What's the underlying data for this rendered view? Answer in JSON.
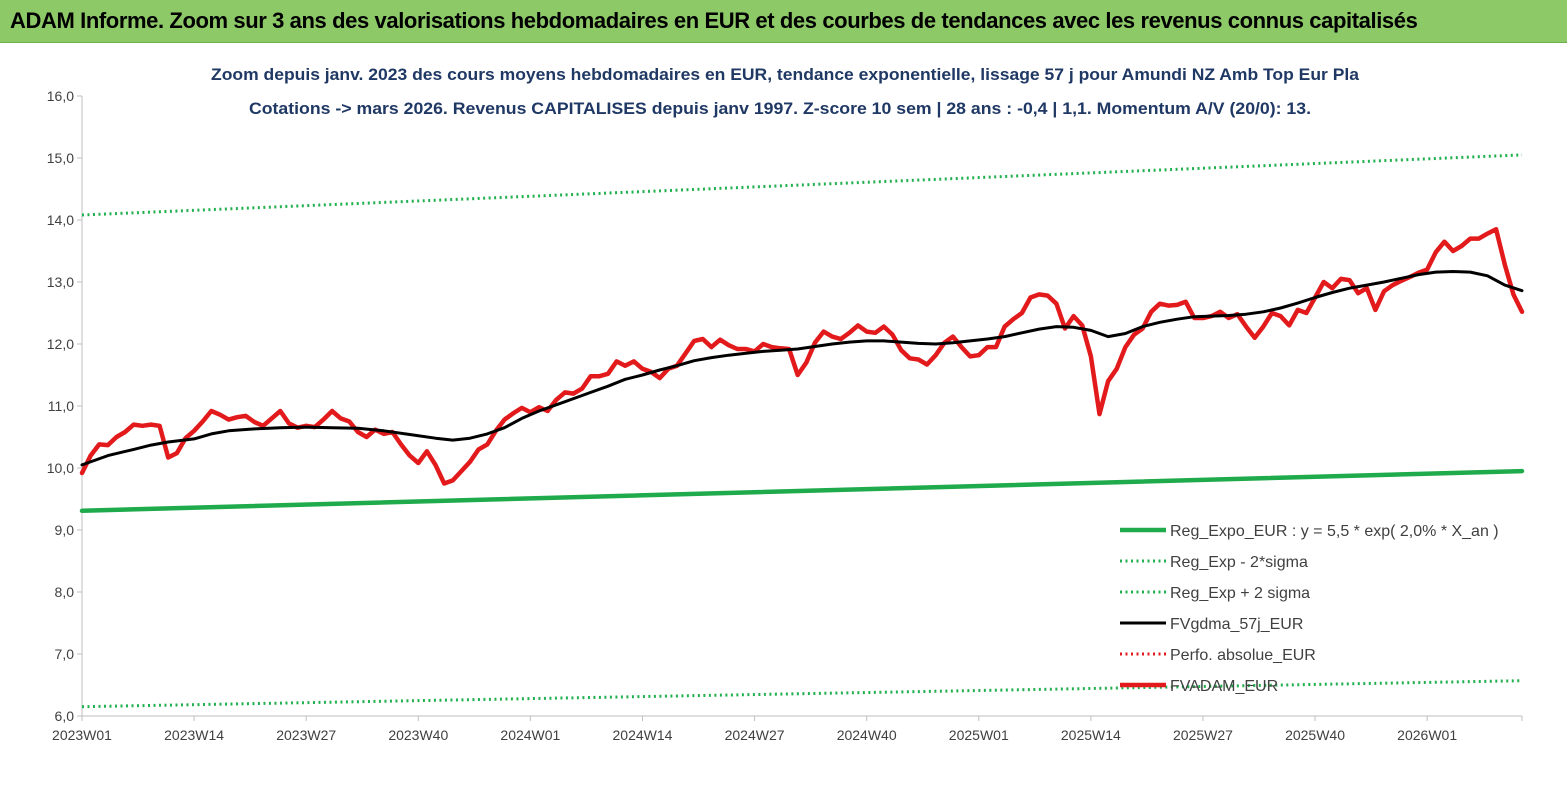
{
  "banner": {
    "title": "ADAM Informe. Zoom sur 3 ans des valorisations hebdomadaires en EUR et des courbes de tendances avec les revenus connus capitalisés"
  },
  "colors": {
    "banner_bg": "#8dc967",
    "reg_expo": "#1faa4b",
    "sigma_bands": "#22b04e",
    "fvgdma": "#000000",
    "perfo": "#e31a1c",
    "fvadam": "#e31a1c"
  },
  "chart_data": {
    "type": "line",
    "title": "Zoom depuis janv. 2023 des cours moyens hebdomadaires en EUR, tendance exponentielle, lissage 57 j pour Amundi NZ Amb Top Eur Pla",
    "subtitle": "Cotations -> mars 2026. Revenus CAPITALISES depuis janv 1997. Z-score 10 sem | 28 ans : -0,4 | 1,1. Momentum A/V (20/0): 13.",
    "ylim": [
      6.0,
      16.0
    ],
    "y_ticks": [
      "6,0",
      "7,0",
      "8,0",
      "9,0",
      "10,0",
      "11,0",
      "12,0",
      "13,0",
      "14,0",
      "15,0",
      "16,0"
    ],
    "x_ticks": [
      "2023W01",
      "2023W14",
      "2023W27",
      "2023W40",
      "2024W01",
      "2024W14",
      "2024W27",
      "2024W40",
      "2025W01",
      "2025W14",
      "2025W27",
      "2025W40",
      "2026W01"
    ],
    "x_tick_weeks": [
      0,
      13,
      26,
      39,
      52,
      65,
      78,
      91,
      104,
      117,
      130,
      143,
      156
    ],
    "x_range_weeks": [
      0,
      167
    ],
    "legend_position": "bottom-right",
    "grid": false,
    "series": [
      {
        "name": "Reg_Expo_EUR : y = 5,5 * exp( 2,0% * X_an )",
        "style": "solid-thick",
        "color": "#1faa4b",
        "points": [
          [
            0,
            9.31
          ],
          [
            167,
            9.95
          ]
        ]
      },
      {
        "name": "Reg_Exp - 2*sigma",
        "style": "dotted",
        "color": "#22b04e",
        "points": [
          [
            0,
            6.15
          ],
          [
            167,
            6.57
          ]
        ]
      },
      {
        "name": "Reg_Exp + 2 sigma",
        "style": "dotted",
        "color": "#22b04e",
        "points": [
          [
            0,
            14.08
          ],
          [
            167,
            15.05
          ]
        ]
      },
      {
        "name": "FVgdma_57j_EUR",
        "style": "solid",
        "color": "#000000",
        "points": [
          [
            0,
            10.05
          ],
          [
            3,
            10.2
          ],
          [
            6,
            10.3
          ],
          [
            8,
            10.37
          ],
          [
            10,
            10.42
          ],
          [
            13,
            10.47
          ],
          [
            15,
            10.55
          ],
          [
            17,
            10.6
          ],
          [
            20,
            10.63
          ],
          [
            23,
            10.65
          ],
          [
            26,
            10.66
          ],
          [
            29,
            10.65
          ],
          [
            32,
            10.64
          ],
          [
            35,
            10.6
          ],
          [
            38,
            10.54
          ],
          [
            41,
            10.48
          ],
          [
            43,
            10.45
          ],
          [
            45,
            10.48
          ],
          [
            47,
            10.55
          ],
          [
            49,
            10.65
          ],
          [
            51,
            10.8
          ],
          [
            53,
            10.92
          ],
          [
            55,
            11.02
          ],
          [
            57,
            11.12
          ],
          [
            59,
            11.22
          ],
          [
            61,
            11.32
          ],
          [
            63,
            11.43
          ],
          [
            65,
            11.5
          ],
          [
            67,
            11.58
          ],
          [
            69,
            11.65
          ],
          [
            71,
            11.73
          ],
          [
            73,
            11.78
          ],
          [
            75,
            11.82
          ],
          [
            77,
            11.85
          ],
          [
            79,
            11.88
          ],
          [
            81,
            11.9
          ],
          [
            83,
            11.92
          ],
          [
            85,
            11.96
          ],
          [
            87,
            12.0
          ],
          [
            89,
            12.03
          ],
          [
            91,
            12.05
          ],
          [
            93,
            12.05
          ],
          [
            95,
            12.03
          ],
          [
            97,
            12.01
          ],
          [
            99,
            12.0
          ],
          [
            101,
            12.02
          ],
          [
            103,
            12.05
          ],
          [
            105,
            12.08
          ],
          [
            107,
            12.12
          ],
          [
            109,
            12.18
          ],
          [
            111,
            12.24
          ],
          [
            113,
            12.28
          ],
          [
            115,
            12.27
          ],
          [
            117,
            12.22
          ],
          [
            119,
            12.12
          ],
          [
            121,
            12.17
          ],
          [
            123,
            12.28
          ],
          [
            125,
            12.35
          ],
          [
            127,
            12.4
          ],
          [
            129,
            12.44
          ],
          [
            131,
            12.45
          ],
          [
            133,
            12.46
          ],
          [
            135,
            12.48
          ],
          [
            137,
            12.52
          ],
          [
            139,
            12.58
          ],
          [
            141,
            12.66
          ],
          [
            143,
            12.75
          ],
          [
            145,
            12.83
          ],
          [
            147,
            12.9
          ],
          [
            149,
            12.95
          ],
          [
            151,
            13.0
          ],
          [
            153,
            13.06
          ],
          [
            155,
            13.12
          ],
          [
            157,
            13.16
          ],
          [
            159,
            13.17
          ],
          [
            161,
            13.16
          ],
          [
            163,
            13.1
          ],
          [
            165,
            12.95
          ],
          [
            167,
            12.86
          ]
        ]
      },
      {
        "name": "Perfo. absolue_EUR",
        "style": "dotted",
        "color": "#e31a1c",
        "points": []
      },
      {
        "name": "FVADAM_EUR",
        "style": "solid-thick",
        "color": "#e31a1c",
        "points": [
          [
            0,
            9.92
          ],
          [
            1,
            10.2
          ],
          [
            2,
            10.38
          ],
          [
            3,
            10.37
          ],
          [
            4,
            10.5
          ],
          [
            5,
            10.58
          ],
          [
            6,
            10.7
          ],
          [
            7,
            10.68
          ],
          [
            8,
            10.7
          ],
          [
            9,
            10.68
          ],
          [
            10,
            10.17
          ],
          [
            11,
            10.24
          ],
          [
            12,
            10.48
          ],
          [
            13,
            10.6
          ],
          [
            14,
            10.75
          ],
          [
            15,
            10.92
          ],
          [
            16,
            10.86
          ],
          [
            17,
            10.78
          ],
          [
            18,
            10.82
          ],
          [
            19,
            10.84
          ],
          [
            20,
            10.74
          ],
          [
            21,
            10.68
          ],
          [
            22,
            10.8
          ],
          [
            23,
            10.92
          ],
          [
            24,
            10.72
          ],
          [
            25,
            10.65
          ],
          [
            26,
            10.68
          ],
          [
            27,
            10.66
          ],
          [
            28,
            10.78
          ],
          [
            29,
            10.92
          ],
          [
            30,
            10.8
          ],
          [
            31,
            10.75
          ],
          [
            32,
            10.58
          ],
          [
            33,
            10.5
          ],
          [
            34,
            10.62
          ],
          [
            35,
            10.55
          ],
          [
            36,
            10.58
          ],
          [
            37,
            10.38
          ],
          [
            38,
            10.2
          ],
          [
            39,
            10.08
          ],
          [
            40,
            10.27
          ],
          [
            41,
            10.05
          ],
          [
            42,
            9.75
          ],
          [
            43,
            9.8
          ],
          [
            44,
            9.95
          ],
          [
            45,
            10.1
          ],
          [
            46,
            10.3
          ],
          [
            47,
            10.38
          ],
          [
            48,
            10.6
          ],
          [
            49,
            10.78
          ],
          [
            50,
            10.88
          ],
          [
            51,
            10.97
          ],
          [
            52,
            10.9
          ],
          [
            53,
            10.98
          ],
          [
            54,
            10.92
          ],
          [
            55,
            11.1
          ],
          [
            56,
            11.22
          ],
          [
            57,
            11.2
          ],
          [
            58,
            11.28
          ],
          [
            59,
            11.48
          ],
          [
            60,
            11.48
          ],
          [
            61,
            11.52
          ],
          [
            62,
            11.72
          ],
          [
            63,
            11.65
          ],
          [
            64,
            11.72
          ],
          [
            65,
            11.6
          ],
          [
            66,
            11.55
          ],
          [
            67,
            11.45
          ],
          [
            68,
            11.6
          ],
          [
            69,
            11.65
          ],
          [
            70,
            11.85
          ],
          [
            71,
            12.05
          ],
          [
            72,
            12.08
          ],
          [
            73,
            11.95
          ],
          [
            74,
            12.07
          ],
          [
            75,
            11.98
          ],
          [
            76,
            11.92
          ],
          [
            77,
            11.92
          ],
          [
            78,
            11.88
          ],
          [
            79,
            12.0
          ],
          [
            80,
            11.95
          ],
          [
            81,
            11.93
          ],
          [
            82,
            11.92
          ],
          [
            83,
            11.5
          ],
          [
            84,
            11.7
          ],
          [
            85,
            12.02
          ],
          [
            86,
            12.2
          ],
          [
            87,
            12.12
          ],
          [
            88,
            12.08
          ],
          [
            89,
            12.18
          ],
          [
            90,
            12.3
          ],
          [
            91,
            12.2
          ],
          [
            92,
            12.18
          ],
          [
            93,
            12.28
          ],
          [
            94,
            12.15
          ],
          [
            95,
            11.9
          ],
          [
            96,
            11.77
          ],
          [
            97,
            11.75
          ],
          [
            98,
            11.67
          ],
          [
            99,
            11.82
          ],
          [
            100,
            12.02
          ],
          [
            101,
            12.12
          ],
          [
            102,
            11.95
          ],
          [
            103,
            11.8
          ],
          [
            104,
            11.82
          ],
          [
            105,
            11.95
          ],
          [
            106,
            11.95
          ],
          [
            107,
            12.28
          ],
          [
            108,
            12.4
          ],
          [
            109,
            12.5
          ],
          [
            110,
            12.75
          ],
          [
            111,
            12.8
          ],
          [
            112,
            12.78
          ],
          [
            113,
            12.65
          ],
          [
            114,
            12.25
          ],
          [
            115,
            12.45
          ],
          [
            116,
            12.3
          ],
          [
            117,
            11.8
          ],
          [
            118,
            10.87
          ],
          [
            119,
            11.4
          ],
          [
            120,
            11.6
          ],
          [
            121,
            11.95
          ],
          [
            122,
            12.15
          ],
          [
            123,
            12.25
          ],
          [
            124,
            12.52
          ],
          [
            125,
            12.65
          ],
          [
            126,
            12.62
          ],
          [
            127,
            12.63
          ],
          [
            128,
            12.68
          ],
          [
            129,
            12.42
          ],
          [
            130,
            12.42
          ],
          [
            131,
            12.45
          ],
          [
            132,
            12.52
          ],
          [
            133,
            12.42
          ],
          [
            134,
            12.48
          ],
          [
            135,
            12.28
          ],
          [
            136,
            12.1
          ],
          [
            137,
            12.28
          ],
          [
            138,
            12.5
          ],
          [
            139,
            12.45
          ],
          [
            140,
            12.3
          ],
          [
            141,
            12.55
          ],
          [
            142,
            12.5
          ],
          [
            143,
            12.75
          ],
          [
            144,
            13.0
          ],
          [
            145,
            12.9
          ],
          [
            146,
            13.05
          ],
          [
            147,
            13.03
          ],
          [
            148,
            12.82
          ],
          [
            149,
            12.9
          ],
          [
            150,
            12.55
          ],
          [
            151,
            12.85
          ],
          [
            152,
            12.95
          ],
          [
            153,
            13.02
          ],
          [
            154,
            13.08
          ],
          [
            155,
            13.15
          ],
          [
            156,
            13.2
          ],
          [
            157,
            13.48
          ],
          [
            158,
            13.65
          ],
          [
            159,
            13.5
          ],
          [
            160,
            13.58
          ],
          [
            161,
            13.7
          ],
          [
            162,
            13.7
          ],
          [
            163,
            13.78
          ],
          [
            164,
            13.85
          ],
          [
            165,
            13.28
          ],
          [
            166,
            12.8
          ],
          [
            167,
            12.52
          ]
        ]
      }
    ]
  }
}
